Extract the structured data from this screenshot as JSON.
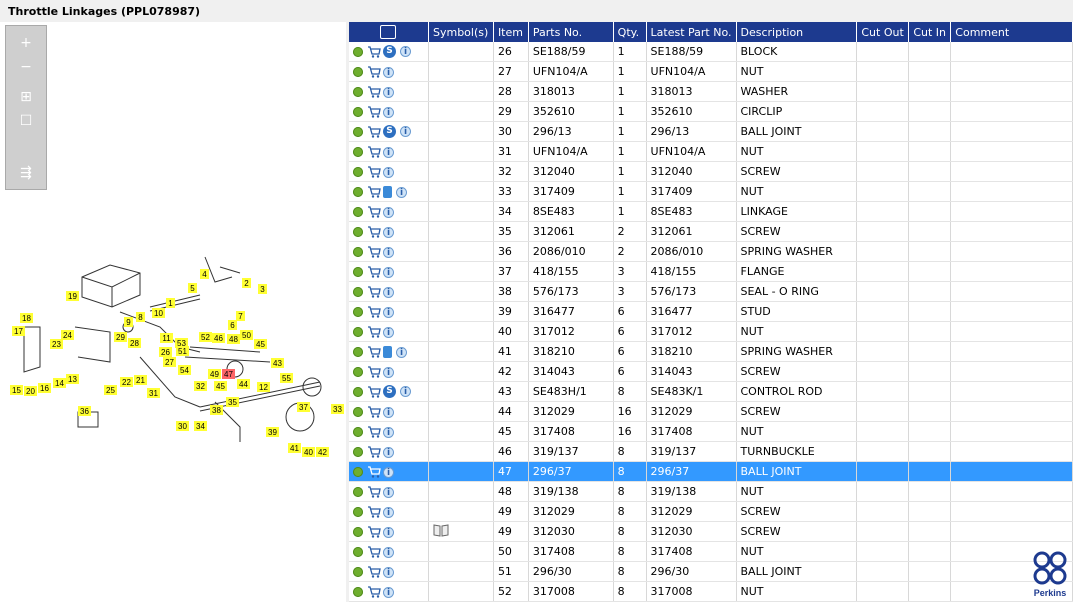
{
  "title": "Throttle Linkages (PPL078987)",
  "toolbar": {
    "zoom_in_label": "+",
    "zoom_out_label": "−",
    "fit_label": "⊞",
    "actual_label": "☐",
    "export_label": "⇶"
  },
  "columns": {
    "icons": "",
    "symbols": "Symbol(s)",
    "item": "Item",
    "parts_no": "Parts No.",
    "qty": "Qty.",
    "latest": "Latest Part No.",
    "desc": "Description",
    "cut_out": "Cut Out",
    "cut_in": "Cut In",
    "comment": "Comment"
  },
  "rows": [
    {
      "item": "26",
      "part": "SE188/59",
      "qty": "1",
      "latest": "SE188/59",
      "desc": "BLOCK",
      "s": true,
      "book": false,
      "sym": false
    },
    {
      "item": "27",
      "part": "UFN104/A",
      "qty": "1",
      "latest": "UFN104/A",
      "desc": "NUT",
      "s": false,
      "book": false,
      "sym": false
    },
    {
      "item": "28",
      "part": "318013",
      "qty": "1",
      "latest": "318013",
      "desc": "WASHER",
      "s": false,
      "book": false,
      "sym": false
    },
    {
      "item": "29",
      "part": "352610",
      "qty": "1",
      "latest": "352610",
      "desc": "CIRCLIP",
      "s": false,
      "book": false,
      "sym": false
    },
    {
      "item": "30",
      "part": "296/13",
      "qty": "1",
      "latest": "296/13",
      "desc": "BALL JOINT",
      "s": true,
      "book": false,
      "sym": false
    },
    {
      "item": "31",
      "part": "UFN104/A",
      "qty": "1",
      "latest": "UFN104/A",
      "desc": "NUT",
      "s": false,
      "book": false,
      "sym": false
    },
    {
      "item": "32",
      "part": "312040",
      "qty": "1",
      "latest": "312040",
      "desc": "SCREW",
      "s": false,
      "book": false,
      "sym": false
    },
    {
      "item": "33",
      "part": "317409",
      "qty": "1",
      "latest": "317409",
      "desc": "NUT",
      "s": false,
      "book": true,
      "sym": false
    },
    {
      "item": "34",
      "part": "8SE483",
      "qty": "1",
      "latest": "8SE483",
      "desc": "LINKAGE",
      "s": false,
      "book": false,
      "sym": false
    },
    {
      "item": "35",
      "part": "312061",
      "qty": "2",
      "latest": "312061",
      "desc": "SCREW",
      "s": false,
      "book": false,
      "sym": false
    },
    {
      "item": "36",
      "part": "2086/010",
      "qty": "2",
      "latest": "2086/010",
      "desc": "SPRING WASHER",
      "s": false,
      "book": false,
      "sym": false
    },
    {
      "item": "37",
      "part": "418/155",
      "qty": "3",
      "latest": "418/155",
      "desc": "FLANGE",
      "s": false,
      "book": false,
      "sym": false
    },
    {
      "item": "38",
      "part": "576/173",
      "qty": "3",
      "latest": "576/173",
      "desc": "SEAL - O RING",
      "s": false,
      "book": false,
      "sym": false
    },
    {
      "item": "39",
      "part": "316477",
      "qty": "6",
      "latest": "316477",
      "desc": "STUD",
      "s": false,
      "book": false,
      "sym": false
    },
    {
      "item": "40",
      "part": "317012",
      "qty": "6",
      "latest": "317012",
      "desc": "NUT",
      "s": false,
      "book": false,
      "sym": false
    },
    {
      "item": "41",
      "part": "318210",
      "qty": "6",
      "latest": "318210",
      "desc": "SPRING WASHER",
      "s": false,
      "book": true,
      "sym": false
    },
    {
      "item": "42",
      "part": "314043",
      "qty": "6",
      "latest": "314043",
      "desc": "SCREW",
      "s": false,
      "book": false,
      "sym": false
    },
    {
      "item": "43",
      "part": "SE483H/1",
      "qty": "8",
      "latest": "SE483K/1",
      "desc": "CONTROL ROD",
      "s": true,
      "book": false,
      "sym": false
    },
    {
      "item": "44",
      "part": "312029",
      "qty": "16",
      "latest": "312029",
      "desc": "SCREW",
      "s": false,
      "book": false,
      "sym": false
    },
    {
      "item": "45",
      "part": "317408",
      "qty": "16",
      "latest": "317408",
      "desc": "NUT",
      "s": false,
      "book": false,
      "sym": false
    },
    {
      "item": "46",
      "part": "319/137",
      "qty": "8",
      "latest": "319/137",
      "desc": "TURNBUCKLE",
      "s": false,
      "book": false,
      "sym": false
    },
    {
      "item": "47",
      "part": "296/37",
      "qty": "8",
      "latest": "296/37",
      "desc": "BALL JOINT",
      "s": false,
      "book": false,
      "sym": false,
      "selected": true
    },
    {
      "item": "48",
      "part": "319/138",
      "qty": "8",
      "latest": "319/138",
      "desc": "NUT",
      "s": false,
      "book": false,
      "sym": false
    },
    {
      "item": "49",
      "part": "312029",
      "qty": "8",
      "latest": "312029",
      "desc": "SCREW",
      "s": false,
      "book": false,
      "sym": false
    },
    {
      "item": "49",
      "part": "312030",
      "qty": "8",
      "latest": "312030",
      "desc": "SCREW",
      "s": false,
      "book": false,
      "sym": true
    },
    {
      "item": "50",
      "part": "317408",
      "qty": "8",
      "latest": "317408",
      "desc": "NUT",
      "s": false,
      "book": false,
      "sym": false
    },
    {
      "item": "51",
      "part": "296/30",
      "qty": "8",
      "latest": "296/30",
      "desc": "BALL JOINT",
      "s": false,
      "book": false,
      "sym": false
    },
    {
      "item": "52",
      "part": "317008",
      "qty": "8",
      "latest": "317008",
      "desc": "NUT",
      "s": false,
      "book": false,
      "sym": false
    }
  ],
  "callouts": [
    "19",
    "4",
    "5",
    "2",
    "3",
    "1",
    "7",
    "6",
    "9",
    "8",
    "10",
    "18",
    "17",
    "24",
    "29",
    "28",
    "11",
    "53",
    "52",
    "46",
    "48",
    "50",
    "45",
    "23",
    "26",
    "51",
    "27",
    "49",
    "47",
    "43",
    "14",
    "13",
    "54",
    "22",
    "21",
    "44",
    "12",
    "16",
    "15",
    "20",
    "25",
    "31",
    "32",
    "45",
    "55",
    "36",
    "35",
    "38",
    "37",
    "33",
    "30",
    "34",
    "39",
    "41",
    "40",
    "42"
  ],
  "highlight_callout": "47",
  "logo_text": "Perkins",
  "colors": {
    "header_bg": "#1d3a8f",
    "selected_row": "#3399ff",
    "callout_bg": "#ffff33",
    "callout_highlight": "#ff6666"
  }
}
